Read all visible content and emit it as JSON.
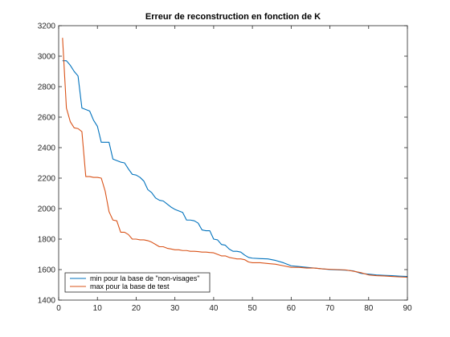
{
  "chart_data": {
    "type": "line",
    "title": "Erreur de reconstruction en fonction de K",
    "xlabel": "",
    "ylabel": "",
    "xlim": [
      0,
      90
    ],
    "ylim": [
      1400,
      3200
    ],
    "xticks": [
      0,
      10,
      20,
      30,
      40,
      50,
      60,
      70,
      80,
      90
    ],
    "yticks": [
      1400,
      1600,
      1800,
      2000,
      2200,
      2400,
      2600,
      2800,
      3000,
      3200
    ],
    "grid": false,
    "legend_position": "bottom-left",
    "series": [
      {
        "name": "min pour la base de \"non-visages\"",
        "color": "#0072BD",
        "x": [
          1,
          2,
          3,
          4,
          5,
          6,
          7,
          8,
          9,
          10,
          11,
          12,
          13,
          14,
          15,
          16,
          17,
          18,
          19,
          20,
          21,
          22,
          23,
          24,
          25,
          26,
          27,
          28,
          29,
          30,
          31,
          32,
          33,
          34,
          35,
          36,
          37,
          38,
          39,
          40,
          41,
          42,
          43,
          44,
          45,
          46,
          47,
          48,
          49,
          50,
          52,
          54,
          56,
          58,
          60,
          62,
          64,
          66,
          68,
          70,
          72,
          74,
          76,
          78,
          80,
          82,
          84,
          86,
          88,
          90
        ],
        "y": [
          2970,
          2970,
          2940,
          2900,
          2870,
          2660,
          2650,
          2640,
          2580,
          2540,
          2435,
          2435,
          2435,
          2325,
          2315,
          2305,
          2300,
          2260,
          2225,
          2220,
          2205,
          2180,
          2125,
          2105,
          2070,
          2055,
          2050,
          2030,
          2010,
          1995,
          1985,
          1975,
          1925,
          1925,
          1920,
          1905,
          1860,
          1855,
          1855,
          1800,
          1795,
          1765,
          1760,
          1735,
          1720,
          1720,
          1715,
          1695,
          1680,
          1675,
          1672,
          1670,
          1660,
          1645,
          1625,
          1620,
          1615,
          1610,
          1605,
          1600,
          1598,
          1596,
          1592,
          1575,
          1570,
          1565,
          1562,
          1560,
          1557,
          1555
        ]
      },
      {
        "name": "max pour la base de test",
        "color": "#D95319",
        "x": [
          1,
          2,
          3,
          4,
          5,
          6,
          7,
          8,
          9,
          10,
          11,
          12,
          13,
          14,
          15,
          16,
          17,
          18,
          19,
          20,
          21,
          22,
          23,
          24,
          25,
          26,
          27,
          28,
          29,
          30,
          31,
          32,
          33,
          34,
          35,
          36,
          37,
          38,
          39,
          40,
          41,
          42,
          43,
          44,
          45,
          46,
          47,
          48,
          49,
          50,
          52,
          54,
          56,
          58,
          60,
          62,
          64,
          66,
          68,
          70,
          72,
          74,
          76,
          78,
          80,
          82,
          84,
          86,
          88,
          90
        ],
        "y": [
          3120,
          2660,
          2570,
          2530,
          2525,
          2505,
          2210,
          2210,
          2205,
          2205,
          2200,
          2115,
          1980,
          1925,
          1920,
          1845,
          1845,
          1830,
          1800,
          1800,
          1795,
          1795,
          1790,
          1780,
          1765,
          1750,
          1750,
          1740,
          1735,
          1730,
          1730,
          1725,
          1725,
          1720,
          1720,
          1718,
          1715,
          1715,
          1712,
          1710,
          1700,
          1690,
          1690,
          1680,
          1675,
          1670,
          1670,
          1665,
          1650,
          1645,
          1645,
          1640,
          1635,
          1625,
          1615,
          1615,
          1610,
          1610,
          1605,
          1602,
          1600,
          1598,
          1590,
          1580,
          1565,
          1560,
          1558,
          1555,
          1552,
          1550
        ]
      }
    ]
  }
}
